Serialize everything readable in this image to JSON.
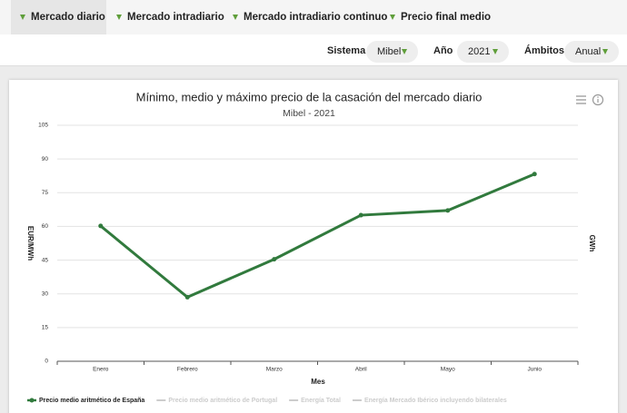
{
  "tabs": [
    "Mercado diario",
    "Mercado intradiario",
    "Mercado intradiario continuo",
    "Precio final medio"
  ],
  "filters": [
    {
      "label": "Sistema",
      "value": "Mibel"
    },
    {
      "label": "Año",
      "value": "2021"
    },
    {
      "label": "Ámbitos",
      "value": "Anual"
    }
  ],
  "chart_data": {
    "type": "line",
    "title": "Mínimo, medio y máximo precio de la casación del mercado diario",
    "subtitle": "Mibel - 2021",
    "x_label": "Mes",
    "y_label": "EUR/MWh",
    "y2_label": "GWh",
    "categories": [
      "Enero",
      "Febrero",
      "Marzo",
      "Abril",
      "Mayo",
      "Junio"
    ],
    "series": [
      {
        "name": "Precio medio aritmético de España",
        "color": "#317a3d",
        "values": [
          60.2,
          28.5,
          45.4,
          65.0,
          67.1,
          83.3
        ]
      }
    ],
    "hidden_legend": [
      "Precio medio aritmético de Portugal",
      "Energía Total",
      "Energía Mercado Ibérico incluyendo bilaterales"
    ],
    "ylim": [
      0,
      105
    ],
    "yticks": [
      0,
      15,
      30,
      45,
      60,
      75,
      90,
      105
    ],
    "grid": true
  }
}
